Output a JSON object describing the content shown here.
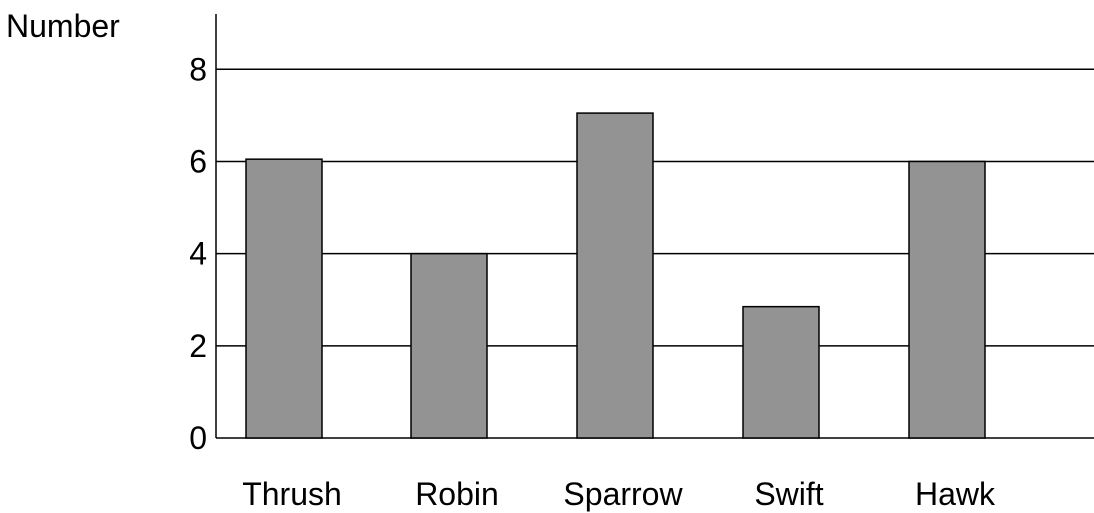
{
  "chart_data": {
    "type": "bar",
    "ylabel": "Number",
    "xlabel": "",
    "title": "",
    "categories": [
      "Thrush",
      "Robin",
      "Sparrow",
      "Swift",
      "Hawk"
    ],
    "values": [
      6.05,
      4,
      7.05,
      2.85,
      6
    ],
    "ylim": [
      0,
      9.2
    ],
    "yticks": [
      0,
      2,
      4,
      6,
      8
    ],
    "ytick_labels": [
      "0",
      "2",
      "4",
      "6",
      "8"
    ],
    "grid": true,
    "legend": "none",
    "colors": {
      "bar_fill": "#939393",
      "bar_stroke": "#000000",
      "grid": "#000000",
      "axis": "#000000",
      "text": "#000000"
    }
  }
}
